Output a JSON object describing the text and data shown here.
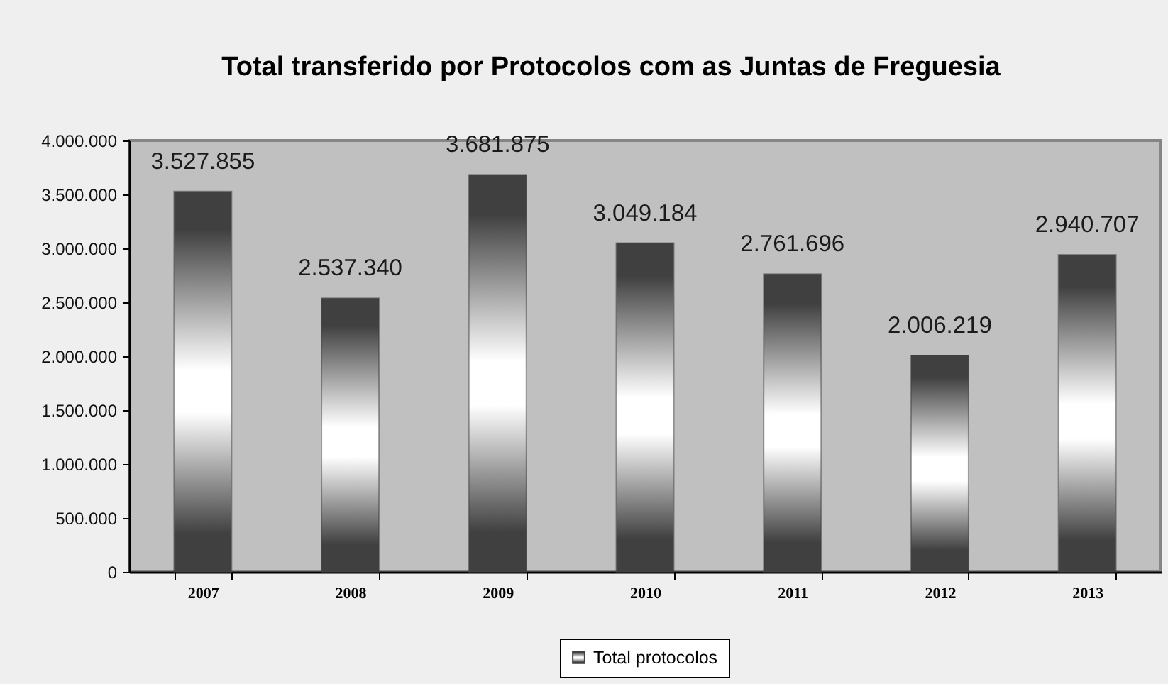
{
  "chart_data": {
    "type": "bar",
    "title": "Total transferido por Protocolos com as Juntas de Freguesia",
    "categories": [
      "2007",
      "2008",
      "2009",
      "2010",
      "2011",
      "2012",
      "2013"
    ],
    "series": [
      {
        "name": "Total protocolos",
        "color": "#404040",
        "values": [
          3527855,
          2537340,
          3681875,
          3049184,
          2761696,
          2006219,
          2940707
        ],
        "value_labels": [
          "3.527.855",
          "2.537.340",
          "3.681.875",
          "3.049.184",
          "2.761.696",
          "2.006.219",
          "2.940.707"
        ]
      }
    ],
    "ylim": [
      0,
      4000000
    ],
    "yticks": [
      {
        "value": 0,
        "label": "0"
      },
      {
        "value": 500000,
        "label": "500.000"
      },
      {
        "value": 1000000,
        "label": "1.000.000"
      },
      {
        "value": 1500000,
        "label": "1.500.000"
      },
      {
        "value": 2000000,
        "label": "2.000.000"
      },
      {
        "value": 2500000,
        "label": "2.500.000"
      },
      {
        "value": 3000000,
        "label": "3.000.000"
      },
      {
        "value": 3500000,
        "label": "3.500.000"
      },
      {
        "value": 4000000,
        "label": "4.000.000"
      }
    ],
    "legend": "bottom"
  }
}
